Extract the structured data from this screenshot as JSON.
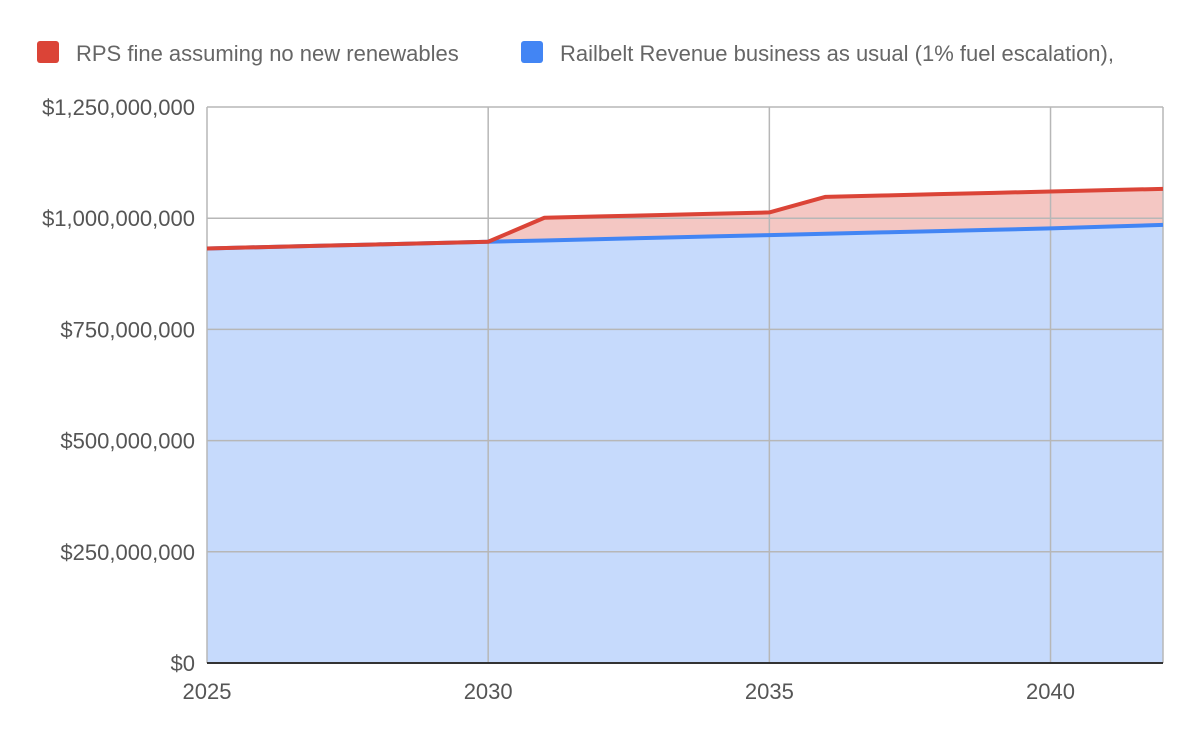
{
  "chart_data": {
    "type": "area",
    "title": "",
    "xlabel": "",
    "ylabel": "",
    "xlim": [
      2025,
      2042
    ],
    "ylim": [
      0,
      1250000000
    ],
    "x_ticks": [
      2025,
      2030,
      2035,
      2040
    ],
    "x_tick_labels": [
      "2025",
      "2030",
      "2035",
      "2040"
    ],
    "y_ticks": [
      0,
      250000000,
      500000000,
      750000000,
      1000000000,
      1250000000
    ],
    "y_tick_labels": [
      "$0",
      "$250,000,000",
      "$500,000,000",
      "$750,000,000",
      "$1,000,000,000",
      "$1,250,000,000"
    ],
    "grid": true,
    "legend_position": "top",
    "x": [
      2025,
      2026,
      2027,
      2028,
      2029,
      2030,
      2031,
      2032,
      2033,
      2034,
      2035,
      2036,
      2037,
      2038,
      2039,
      2040,
      2041,
      2042
    ],
    "series": [
      {
        "name": "RPS fine assuming no new renewables",
        "color": "#db4437",
        "fill": "#f4c7c3",
        "values": [
          932000000,
          935000000,
          938000000,
          941000000,
          944000000,
          947000000,
          1001000000,
          1004000000,
          1007000000,
          1010000000,
          1013000000,
          1048000000,
          1051000000,
          1054000000,
          1057000000,
          1060000000,
          1063000000,
          1066000000
        ]
      },
      {
        "name": "Railbelt Revenue business as usual (1% fuel escalation),",
        "color": "#4285f4",
        "fill": "#c6dafc",
        "values": [
          932000000,
          935000000,
          938000000,
          941000000,
          944000000,
          947000000,
          950000000,
          953000000,
          956000000,
          959000000,
          962000000,
          965000000,
          968000000,
          971000000,
          974000000,
          977000000,
          981000000,
          985000000
        ]
      }
    ]
  }
}
